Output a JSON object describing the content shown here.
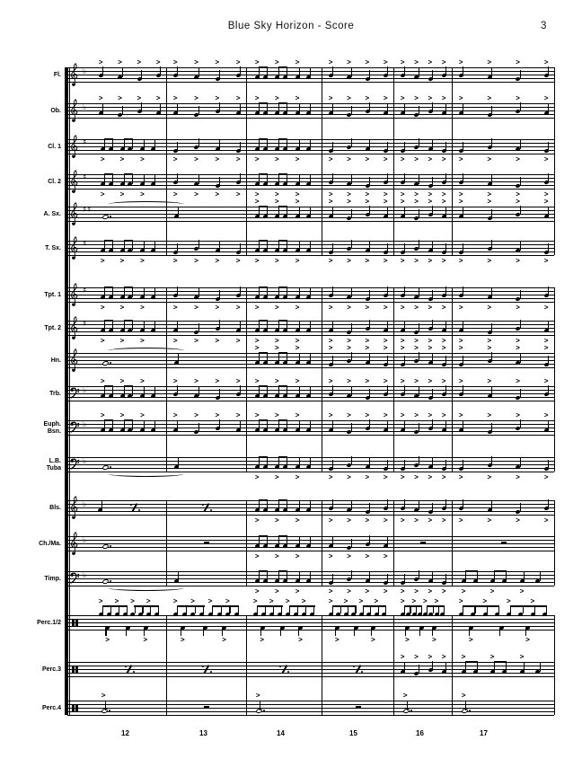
{
  "header": {
    "title": "Blue Sky Horizon - Score",
    "page": "3"
  },
  "measure_numbers": [
    "12",
    "13",
    "14",
    "15",
    "16",
    "17"
  ],
  "colors": {
    "ink": "#000000",
    "paper": "#ffffff"
  },
  "staves": [
    {
      "label": "Fl.",
      "label2": "",
      "clef": "treble",
      "key": "b",
      "accent": "above",
      "measures": [
        "Q",
        "Q",
        "E",
        "Q",
        "Q",
        "Q"
      ]
    },
    {
      "label": "Ob.",
      "label2": "",
      "clef": "treble",
      "key": "b",
      "accent": "above",
      "measures": [
        "Q",
        "Q",
        "E",
        "Q",
        "Q",
        "Q"
      ]
    },
    {
      "label": "Cl. 1",
      "label2": "",
      "clef": "treble",
      "key": "#",
      "accent": "below",
      "measures": [
        "E",
        "Q",
        "E",
        "Q",
        "Q",
        "Q"
      ]
    },
    {
      "label": "Cl. 2",
      "label2": "",
      "clef": "treble",
      "key": "#",
      "accent": "below",
      "measures": [
        "E",
        "Q",
        "E",
        "Q",
        "Q",
        "Q"
      ]
    },
    {
      "label": "A. Sx.",
      "label2": "",
      "clef": "treble",
      "key": "##",
      "accent": "above",
      "measures": [
        "WT",
        "T",
        "E",
        "Q",
        "Q",
        "Q"
      ]
    },
    {
      "label": "T. Sx.",
      "label2": "",
      "clef": "treble",
      "key": "#",
      "accent": "below",
      "measures": [
        "E",
        "Q",
        "E",
        "Q",
        "Q",
        "Q"
      ]
    },
    {
      "label": "Tpt. 1",
      "label2": "",
      "clef": "treble",
      "key": "#",
      "accent": "below",
      "measures": [
        "E",
        "Q",
        "E",
        "Q",
        "Q",
        "Q"
      ]
    },
    {
      "label": "Tpt. 2",
      "label2": "",
      "clef": "treble",
      "key": "#",
      "accent": "below",
      "measures": [
        "E",
        "Q",
        "E",
        "Q",
        "Q",
        "Q"
      ]
    },
    {
      "label": "Hn.",
      "label2": "",
      "clef": "treble",
      "key": "",
      "accent": "above",
      "measures": [
        "WT",
        "T",
        "E",
        "Q",
        "Q",
        "Q"
      ]
    },
    {
      "label": "Trb.",
      "label2": "",
      "clef": "bass",
      "key": "b",
      "accent": "above",
      "measures": [
        "E",
        "Q",
        "E",
        "Q",
        "Q",
        "Q"
      ]
    },
    {
      "label": "Euph.",
      "label2": "Bsn.",
      "clef": "bass",
      "key": "b",
      "accent": "above",
      "measures": [
        "E",
        "Q",
        "E",
        "Q",
        "Q",
        "Q"
      ]
    },
    {
      "label": "L.B.",
      "label2": "Tuba",
      "clef": "bass",
      "key": "b",
      "accent": "below",
      "measures": [
        "WT",
        "T",
        "E",
        "Q",
        "Q",
        "Q"
      ]
    },
    {
      "label": "Bls.",
      "label2": "",
      "clef": "treble",
      "key": "b",
      "accent": "below",
      "measures": [
        "NX",
        "X",
        "E",
        "Q",
        "Q",
        "Q"
      ]
    },
    {
      "label": "Ch./Ma.",
      "label2": "",
      "clef": "treble",
      "key": "b",
      "accent": "below",
      "measures": [
        "W",
        "R",
        "E",
        "Q",
        "R",
        "R"
      ]
    },
    {
      "label": "Timp.",
      "label2": "",
      "clef": "bass",
      "key": "b",
      "accent": "below",
      "measures": [
        "WT",
        "T",
        "E",
        "Q",
        "Q",
        "E"
      ]
    },
    {
      "label": "Perc.1/2",
      "label2": "",
      "clef": "perc",
      "key": "",
      "accent": "above",
      "measures": [
        "DR",
        "DR",
        "DR",
        "DR",
        "DR",
        "DR"
      ]
    },
    {
      "label": "Perc.3",
      "label2": "",
      "clef": "perc",
      "key": "",
      "accent": "above",
      "measures": [
        "X",
        "X",
        "X",
        "X",
        "Q",
        "E"
      ]
    },
    {
      "label": "Perc.4",
      "label2": "",
      "clef": "perc",
      "key": "",
      "accent": "above",
      "measures": [
        "P4",
        "R",
        "P4",
        "R",
        "P4",
        "P4"
      ]
    }
  ]
}
